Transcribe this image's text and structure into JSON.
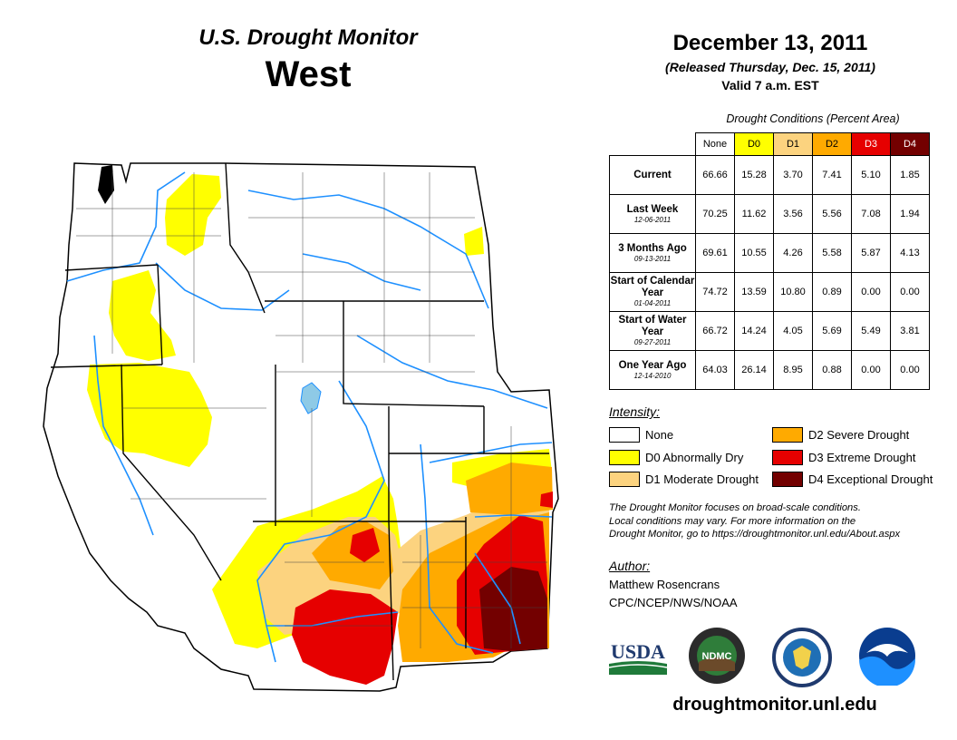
{
  "header": {
    "product": "U.S. Drought Monitor",
    "region": "West",
    "date": "December 13, 2011",
    "released": "(Released Thursday, Dec. 15, 2011)",
    "valid": "Valid 7 a.m. EST"
  },
  "conditions": {
    "caption": "Drought Conditions (Percent Area)",
    "columns": [
      {
        "label": "None",
        "color": "#ffffff",
        "text_color": "#000000"
      },
      {
        "label": "D0",
        "color": "#ffff00",
        "text_color": "#000000"
      },
      {
        "label": "D1",
        "color": "#fcd37f",
        "text_color": "#000000"
      },
      {
        "label": "D2",
        "color": "#ffaa00",
        "text_color": "#000000"
      },
      {
        "label": "D3",
        "color": "#e60000",
        "text_color": "#ffffff"
      },
      {
        "label": "D4",
        "color": "#730000",
        "text_color": "#ffffff"
      }
    ],
    "rows": [
      {
        "label": "Current",
        "sublabel": "",
        "values": [
          "66.66",
          "15.28",
          "3.70",
          "7.41",
          "5.10",
          "1.85"
        ]
      },
      {
        "label": "Last Week",
        "sublabel": "12-06-2011",
        "values": [
          "70.25",
          "11.62",
          "3.56",
          "5.56",
          "7.08",
          "1.94"
        ]
      },
      {
        "label": "3 Months Ago",
        "sublabel": "09-13-2011",
        "values": [
          "69.61",
          "10.55",
          "4.26",
          "5.58",
          "5.87",
          "4.13"
        ]
      },
      {
        "label": "Start of Calendar Year",
        "sublabel": "01-04-2011",
        "values": [
          "74.72",
          "13.59",
          "10.80",
          "0.89",
          "0.00",
          "0.00"
        ]
      },
      {
        "label": "Start of Water Year",
        "sublabel": "09-27-2011",
        "values": [
          "66.72",
          "14.24",
          "4.05",
          "5.69",
          "5.49",
          "3.81"
        ]
      },
      {
        "label": "One Year Ago",
        "sublabel": "12-14-2010",
        "values": [
          "64.03",
          "26.14",
          "8.95",
          "0.88",
          "0.00",
          "0.00"
        ]
      }
    ]
  },
  "intensity": {
    "title": "Intensity:",
    "items": [
      {
        "label": "None",
        "color": "#ffffff"
      },
      {
        "label": "D0 Abnormally Dry",
        "color": "#ffff00"
      },
      {
        "label": "D1 Moderate Drought",
        "color": "#fcd37f"
      },
      {
        "label": "D2 Severe Drought",
        "color": "#ffaa00"
      },
      {
        "label": "D3 Extreme Drought",
        "color": "#e60000"
      },
      {
        "label": "D4 Exceptional Drought",
        "color": "#730000"
      }
    ]
  },
  "notes": {
    "line1": "The Drought Monitor focuses on broad-scale conditions.",
    "line2": "Local conditions may vary. For more information on the",
    "line3": "Drought Monitor, go to https://droughtmonitor.unl.edu/About.aspx"
  },
  "author": {
    "title": "Author:",
    "name": "Matthew Rosencrans",
    "org": "CPC/NCEP/NWS/NOAA"
  },
  "logos": {
    "usda": "USDA",
    "ndmc": "NDMC",
    "ndmc_ring": "NATIONAL DROUGHT MITIGATION CENTER",
    "noaa": "NOAA"
  },
  "website": "droughtmonitor.unl.edu",
  "colors": {
    "water": "#1e90ff",
    "lake": "#8ecae6",
    "border": "#000000"
  }
}
